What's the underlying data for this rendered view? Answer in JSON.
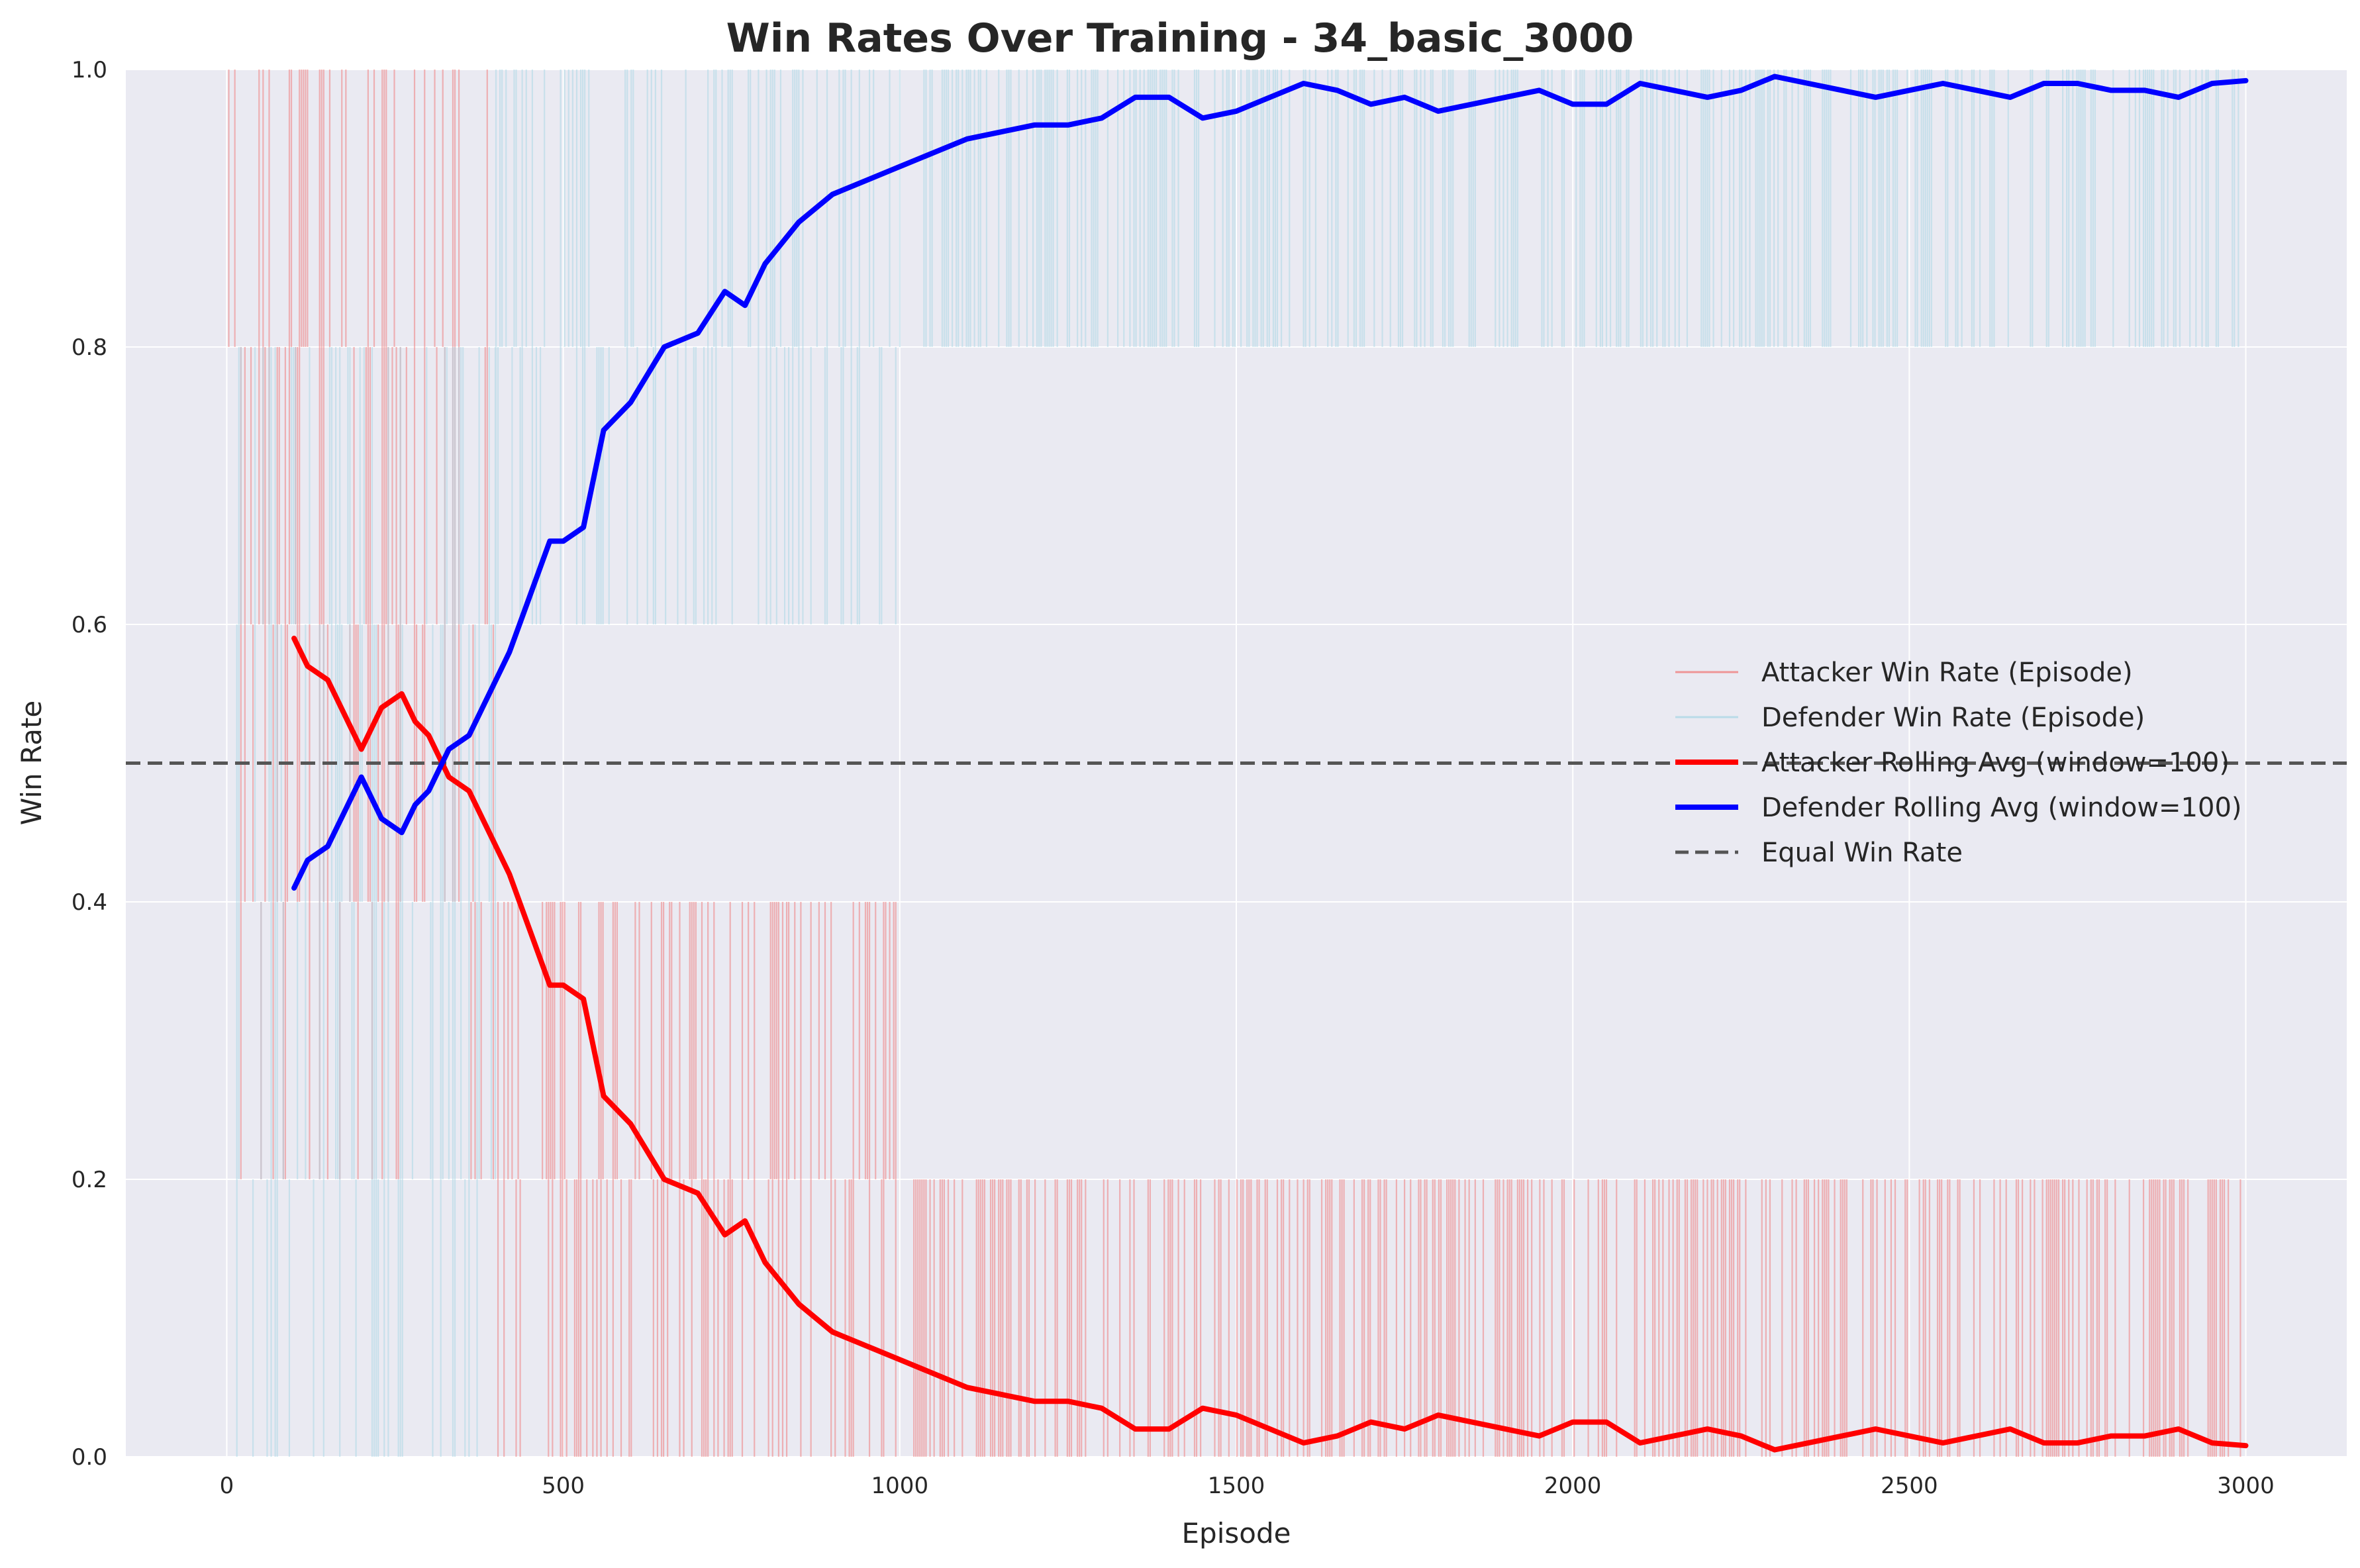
{
  "chart_data": {
    "type": "line",
    "title": "Win Rates Over Training - 34_basic_3000",
    "xlabel": "Episode",
    "ylabel": "Win Rate",
    "xlim": [
      -150,
      3150
    ],
    "ylim": [
      0.0,
      1.0
    ],
    "xticks": [
      0,
      500,
      1000,
      1500,
      2000,
      2500,
      3000
    ],
    "yticks": [
      0.0,
      0.2,
      0.4,
      0.6,
      0.8,
      1.0
    ],
    "grid": true,
    "legend_position": "center-right",
    "colors": {
      "background": "#eaeaf2",
      "grid": "#ffffff",
      "attacker_episode": "#f08080",
      "defender_episode": "#add8e6",
      "attacker_avg": "#ff0000",
      "defender_avg": "#0000ff",
      "equal": "#555555"
    },
    "reference_line": {
      "name": "Equal Win Rate",
      "y": 0.5
    },
    "series": [
      {
        "name": "Attacker Win Rate (Episode)",
        "kind": "per-episode",
        "segments": [
          {
            "x_range": [
              0,
              400
            ],
            "levels": [
              0.2,
              0.4,
              0.6,
              0.8,
              1.0
            ]
          },
          {
            "x_range": [
              400,
              1000
            ],
            "levels": [
              0.0,
              0.2,
              0.4
            ]
          },
          {
            "x_range": [
              1000,
              3000
            ],
            "levels": [
              0.0,
              0.2
            ]
          }
        ]
      },
      {
        "name": "Defender Win Rate (Episode)",
        "kind": "per-episode",
        "segments": [
          {
            "x_range": [
              0,
              400
            ],
            "levels": [
              0.0,
              0.2,
              0.4,
              0.6,
              0.8
            ]
          },
          {
            "x_range": [
              400,
              1000
            ],
            "levels": [
              0.6,
              0.8,
              1.0
            ]
          },
          {
            "x_range": [
              1000,
              3000
            ],
            "levels": [
              0.8,
              1.0
            ]
          }
        ]
      },
      {
        "name": "Attacker Rolling Avg (window=100)",
        "kind": "rolling",
        "x": [
          100,
          120,
          150,
          180,
          200,
          230,
          260,
          280,
          300,
          330,
          360,
          400,
          420,
          450,
          480,
          500,
          530,
          560,
          600,
          650,
          700,
          740,
          770,
          800,
          850,
          900,
          950,
          1000,
          1050,
          1100,
          1150,
          1200,
          1250,
          1300,
          1350,
          1400,
          1450,
          1500,
          1550,
          1600,
          1650,
          1700,
          1750,
          1800,
          1850,
          1900,
          1950,
          2000,
          2050,
          2100,
          2150,
          2200,
          2250,
          2300,
          2350,
          2400,
          2450,
          2500,
          2550,
          2600,
          2650,
          2700,
          2750,
          2800,
          2850,
          2900,
          2950,
          3000
        ],
        "y": [
          0.59,
          0.57,
          0.56,
          0.53,
          0.51,
          0.54,
          0.55,
          0.53,
          0.52,
          0.49,
          0.48,
          0.44,
          0.42,
          0.38,
          0.34,
          0.34,
          0.33,
          0.26,
          0.24,
          0.2,
          0.19,
          0.16,
          0.17,
          0.14,
          0.11,
          0.09,
          0.08,
          0.07,
          0.06,
          0.05,
          0.045,
          0.04,
          0.04,
          0.035,
          0.02,
          0.02,
          0.035,
          0.03,
          0.02,
          0.01,
          0.015,
          0.025,
          0.02,
          0.03,
          0.025,
          0.02,
          0.015,
          0.025,
          0.025,
          0.01,
          0.015,
          0.02,
          0.015,
          0.005,
          0.01,
          0.015,
          0.02,
          0.015,
          0.01,
          0.015,
          0.02,
          0.01,
          0.01,
          0.015,
          0.015,
          0.02,
          0.01,
          0.008
        ]
      },
      {
        "name": "Defender Rolling Avg (window=100)",
        "kind": "rolling",
        "x": [
          100,
          120,
          150,
          180,
          200,
          230,
          260,
          280,
          300,
          330,
          360,
          400,
          420,
          450,
          480,
          500,
          530,
          560,
          600,
          650,
          700,
          740,
          770,
          800,
          850,
          900,
          950,
          1000,
          1050,
          1100,
          1150,
          1200,
          1250,
          1300,
          1350,
          1400,
          1450,
          1500,
          1550,
          1600,
          1650,
          1700,
          1750,
          1800,
          1850,
          1900,
          1950,
          2000,
          2050,
          2100,
          2150,
          2200,
          2250,
          2300,
          2350,
          2400,
          2450,
          2500,
          2550,
          2600,
          2650,
          2700,
          2750,
          2800,
          2850,
          2900,
          2950,
          3000
        ],
        "y": [
          0.41,
          0.43,
          0.44,
          0.47,
          0.49,
          0.46,
          0.45,
          0.47,
          0.48,
          0.51,
          0.52,
          0.56,
          0.58,
          0.62,
          0.66,
          0.66,
          0.67,
          0.74,
          0.76,
          0.8,
          0.81,
          0.84,
          0.83,
          0.86,
          0.89,
          0.91,
          0.92,
          0.93,
          0.94,
          0.95,
          0.955,
          0.96,
          0.96,
          0.965,
          0.98,
          0.98,
          0.965,
          0.97,
          0.98,
          0.99,
          0.985,
          0.975,
          0.98,
          0.97,
          0.975,
          0.98,
          0.985,
          0.975,
          0.975,
          0.99,
          0.985,
          0.98,
          0.985,
          0.995,
          0.99,
          0.985,
          0.98,
          0.985,
          0.99,
          0.985,
          0.98,
          0.99,
          0.99,
          0.985,
          0.985,
          0.98,
          0.99,
          0.992
        ]
      }
    ]
  }
}
